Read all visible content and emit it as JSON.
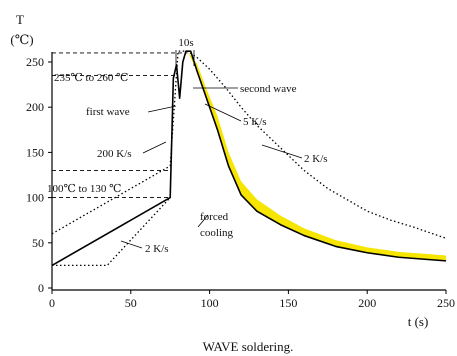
{
  "chart_data": {
    "type": "line",
    "title": "",
    "caption": "WAVE soldering.",
    "xlabel": "t (s)",
    "ylabel_top": "T",
    "ylabel_unit": "(℃)",
    "xlim": [
      0,
      250
    ],
    "ylim": [
      0,
      275
    ],
    "xticks": [
      0,
      50,
      100,
      150,
      200,
      250
    ],
    "yticks": [
      0,
      50,
      100,
      150,
      200,
      250
    ],
    "grid": false,
    "legend": "none",
    "series": [
      {
        "style": "solid",
        "color": "#000000",
        "x": [
          0,
          75,
          77,
          79,
          81,
          83,
          85,
          88,
          92,
          98,
          105,
          112,
          120,
          130,
          145,
          160,
          180,
          200,
          220,
          250
        ],
        "y": [
          25,
          100,
          232,
          247,
          210,
          250,
          262,
          262,
          240,
          210,
          175,
          135,
          103,
          85,
          70,
          58,
          46,
          39,
          34,
          30
        ]
      },
      {
        "style": "dotted",
        "color": "#000000",
        "x": [
          0,
          75,
          80,
          86,
          92,
          100,
          110,
          120,
          130,
          145,
          160,
          175,
          190,
          200,
          215,
          230,
          250
        ],
        "y": [
          60,
          135,
          262,
          262,
          255,
          242,
          222,
          200,
          180,
          155,
          130,
          110,
          95,
          85,
          75,
          67,
          55
        ]
      },
      {
        "style": "dotted",
        "color": "#000000",
        "x": [
          0,
          35,
          75
        ],
        "y": [
          25,
          25,
          100
        ]
      },
      {
        "style": "band",
        "color": "#f5e500",
        "x": [
          86,
          92,
          98,
          105,
          112,
          120,
          130,
          145,
          160,
          180,
          200,
          220,
          250
        ],
        "y_low": [
          262,
          240,
          210,
          175,
          135,
          103,
          85,
          70,
          58,
          46,
          39,
          34,
          30
        ],
        "y_high": [
          262,
          248,
          220,
          190,
          150,
          118,
          98,
          80,
          66,
          53,
          45,
          40,
          36
        ]
      }
    ],
    "reference_lines": [
      {
        "y": 260,
        "x_from": 0,
        "x_to": 86
      },
      {
        "y": 235,
        "x_from": 0,
        "x_to": 79
      },
      {
        "y": 130,
        "x_from": 0,
        "x_to": 75
      },
      {
        "y": 100,
        "x_from": 0,
        "x_to": 75
      }
    ],
    "annotations": {
      "duration": "10s",
      "peak_range": "235℃ to 260 ℃",
      "first_wave": "first wave",
      "second_wave": "second wave",
      "rate_5": "5 K/s",
      "rate_200": "200 K/s",
      "rate_2_right": "2 K/s",
      "preheat_range": "100℃ to 130 ℃",
      "forced_cooling_1": "forced",
      "forced_cooling_2": "cooling",
      "rate_2_left": "2 K/s"
    }
  }
}
